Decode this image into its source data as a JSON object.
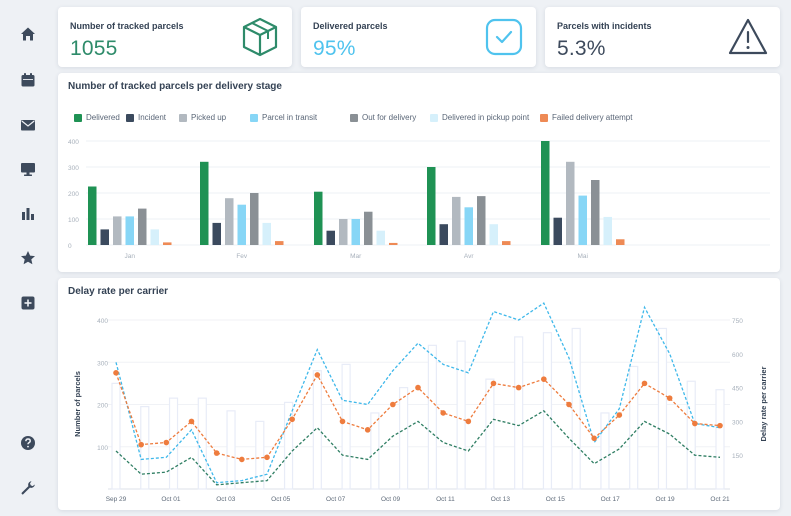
{
  "sidebar": {
    "items": [
      {
        "name": "home-icon",
        "glyph": "home"
      },
      {
        "name": "calendar-icon",
        "glyph": "calendar"
      },
      {
        "name": "mail-icon",
        "glyph": "mail"
      },
      {
        "name": "monitor-icon",
        "glyph": "monitor"
      },
      {
        "name": "bar-chart-icon",
        "glyph": "bars"
      },
      {
        "name": "star-icon",
        "glyph": "star"
      },
      {
        "name": "add-box-icon",
        "glyph": "plus"
      },
      {
        "name": "help-icon",
        "glyph": "help"
      },
      {
        "name": "wrench-icon",
        "glyph": "wrench"
      }
    ],
    "color": "#3d4a5c"
  },
  "kpis": [
    {
      "label": "Number of tracked parcels",
      "value": "1055",
      "color": "#2e8b6a",
      "icon": "box-icon"
    },
    {
      "label": "Delivered parcels",
      "value": "95%",
      "color": "#4fc3ee",
      "icon": "check-badge-icon"
    },
    {
      "label": "Parcels with incidents",
      "value": "5.3%",
      "color": "#3d4a5c",
      "icon": "warning-icon"
    }
  ],
  "chart_data": [
    {
      "type": "bar",
      "title": "Number of tracked parcels per delivery stage",
      "categories": [
        "Jan",
        "Fev",
        "Mar",
        "Avr",
        "Mai"
      ],
      "ylim": [
        0,
        400
      ],
      "yticks": [
        0,
        100,
        200,
        300,
        400
      ],
      "grid": true,
      "legend_position": "top-left",
      "series": [
        {
          "name": "Delivered",
          "color": "#1f9254",
          "values": [
            225,
            320,
            205,
            300,
            400
          ]
        },
        {
          "name": "Incident",
          "color": "#3b4a5e",
          "values": [
            60,
            85,
            55,
            80,
            105
          ]
        },
        {
          "name": "Picked up",
          "color": "#b2b9c0",
          "values": [
            110,
            180,
            100,
            185,
            320
          ]
        },
        {
          "name": "Parcel in transit",
          "color": "#87d6f6",
          "values": [
            110,
            155,
            100,
            145,
            190
          ]
        },
        {
          "name": "Out for delivery",
          "color": "#8a9095",
          "values": [
            140,
            200,
            128,
            188,
            250
          ]
        },
        {
          "name": "Delivered in pickup point",
          "color": "#d6f0fb",
          "values": [
            60,
            85,
            55,
            80,
            108
          ]
        },
        {
          "name": "Failed delivery attempt",
          "color": "#ee8a55",
          "values": [
            10,
            15,
            8,
            15,
            22
          ]
        }
      ]
    },
    {
      "type": "line",
      "title": "Delay rate per carrier",
      "ylabel": "Number of parcels",
      "y2label": "Delay rate per carrier",
      "ylim": [
        0,
        400
      ],
      "yticks": [
        100,
        200,
        300,
        400
      ],
      "y2lim": [
        0,
        750
      ],
      "y2ticks": [
        150,
        300,
        450,
        600,
        750
      ],
      "xtick_labels": [
        "Sep 29",
        "Oct 01",
        "Oct 03",
        "Oct 05",
        "Oct 07",
        "Oct 09",
        "Oct 11",
        "Oct 13",
        "Oct 15",
        "Oct 17",
        "Oct 19",
        "Oct 21"
      ],
      "bars": [
        250,
        195,
        215,
        215,
        185,
        160,
        205,
        280,
        295,
        180,
        240,
        340,
        350,
        260,
        360,
        370,
        380,
        180,
        290,
        380,
        255,
        235
      ],
      "bar_color": "#e8ecf7",
      "series": [
        {
          "color": "#3fb8ea",
          "dash": true,
          "markers": false,
          "values": [
            300,
            70,
            75,
            140,
            15,
            20,
            35,
            185,
            330,
            210,
            200,
            280,
            345,
            295,
            275,
            420,
            400,
            440,
            310,
            110,
            190,
            430,
            320,
            155,
            145
          ]
        },
        {
          "color": "#ee7c3e",
          "dash": true,
          "markers": true,
          "values": [
            275,
            105,
            110,
            160,
            85,
            70,
            75,
            165,
            270,
            160,
            140,
            200,
            240,
            180,
            160,
            250,
            240,
            260,
            200,
            120,
            175,
            250,
            215,
            155,
            150
          ]
        },
        {
          "color": "#2f7e63",
          "dash": true,
          "markers": false,
          "values": [
            90,
            35,
            40,
            75,
            10,
            15,
            20,
            90,
            145,
            80,
            70,
            125,
            160,
            110,
            90,
            165,
            150,
            185,
            120,
            60,
            95,
            160,
            130,
            80,
            75
          ]
        }
      ]
    }
  ]
}
